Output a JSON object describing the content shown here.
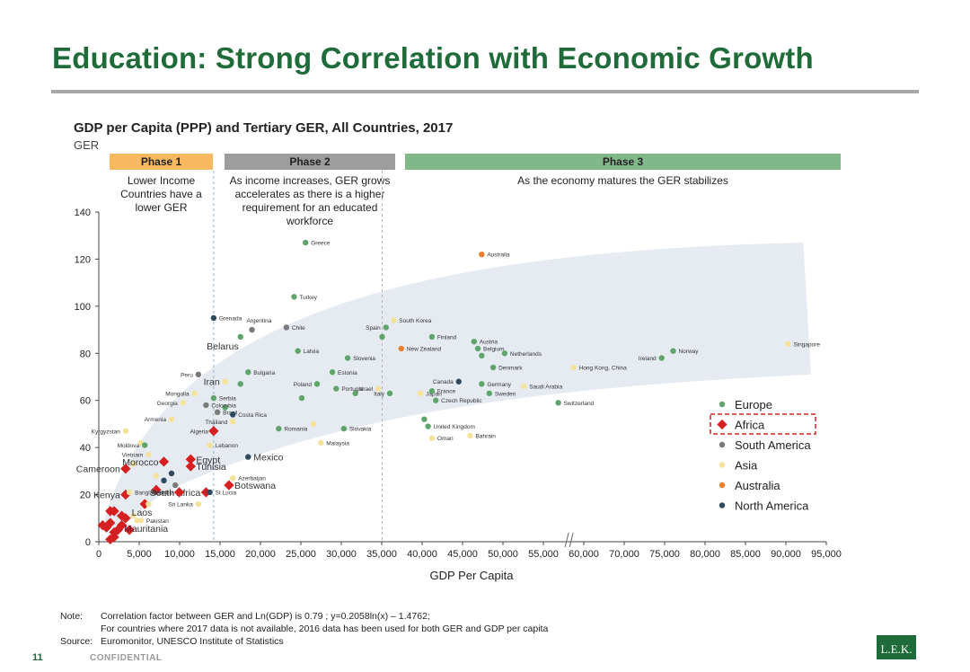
{
  "page": {
    "title": "Education: Strong Correlation with Economic Growth",
    "page_number": "11",
    "confidential": "CONFIDENTIAL",
    "logo_text": "L.E.K."
  },
  "notes": {
    "note_label": "Note:",
    "note_line1": "Correlation factor between GER and Ln(GDP) is 0.79 ; y=0.2058ln(x) – 1.4762;",
    "note_line2": "For countries where 2017 data is not available, 2016 data has been used for both GER and GDP per capita",
    "source_label": "Source:",
    "source_text": "Euromonitor, UNESCO Institute of Statistics"
  },
  "colors": {
    "Europe": "#5fa56b",
    "Africa": "#d42020",
    "South America": "#7a7a7a",
    "Asia": "#f4e29a",
    "Australia": "#ee7d2e",
    "North America": "#2e4a5e",
    "band": "#e6ebf2",
    "phase1": "#f8b860",
    "phase2": "#9d9d9d",
    "phase3": "#80b889"
  },
  "chart_data": {
    "type": "scatter",
    "title": "GDP per Capita (PPP) and Tertiary GER, All Countries, 2017",
    "ylabel": "GER",
    "xlabel": "GDP Per Capita",
    "xlim": [
      0,
      95000
    ],
    "ylim": [
      0,
      140
    ],
    "xticks": [
      "0",
      "5,000",
      "10,000",
      "15,000",
      "20,000",
      "25,000",
      "30,000",
      "35,000",
      "40,000",
      "45,000",
      "50,000",
      "55,000",
      "60,000",
      "70,000",
      "75,000",
      "80,000",
      "85,000",
      "90,000",
      "95,000"
    ],
    "yticks": [
      "0",
      "20",
      "40",
      "60",
      "80",
      "100",
      "120",
      "140"
    ],
    "axis_break_at": 61000,
    "phases": [
      {
        "name": "Phase 1",
        "desc": "Lower Income Countries have a lower GER",
        "x_end": 15000
      },
      {
        "name": "Phase 2",
        "desc": "As income increases, GER grows accelerates as there is a higher requirement for an educated workforce",
        "x_end": 37000
      },
      {
        "name": "Phase 3",
        "desc": "As the economy matures the GER stabilizes",
        "x_end": 95000
      }
    ],
    "legend": [
      "Europe",
      "Africa",
      "South America",
      "Asia",
      "Australia",
      "North America"
    ],
    "legend_highlight": "Africa",
    "legend_position": "bottom-right",
    "points": [
      {
        "label": "Greece",
        "x": 27000,
        "y": 127,
        "region": "Europe"
      },
      {
        "label": "Australia",
        "x": 50000,
        "y": 122,
        "region": "Australia"
      },
      {
        "label": "Turkey",
        "x": 25500,
        "y": 104,
        "region": "Europe"
      },
      {
        "label": "Grenada",
        "x": 15000,
        "y": 95,
        "region": "North America"
      },
      {
        "label": "Argentina",
        "x": 20000,
        "y": 90,
        "region": "South America"
      },
      {
        "label": "Chile",
        "x": 24500,
        "y": 91,
        "region": "South America"
      },
      {
        "label": "South Korea",
        "x": 38500,
        "y": 94,
        "region": "Asia"
      },
      {
        "label": "Spain",
        "x": 37500,
        "y": 91,
        "region": "Europe"
      },
      {
        "label": "Belarus",
        "x": 18500,
        "y": 87,
        "region": "Europe"
      },
      {
        "label": "Latvia",
        "x": 26000,
        "y": 81,
        "region": "Europe"
      },
      {
        "label": "Slovenia",
        "x": 32500,
        "y": 78,
        "region": "Europe"
      },
      {
        "label": "Finland",
        "x": 43500,
        "y": 87,
        "region": "Europe"
      },
      {
        "label": "Austria",
        "x": 49000,
        "y": 85,
        "region": "Europe"
      },
      {
        "label": "New Zealand",
        "x": 39500,
        "y": 82,
        "region": "Australia"
      },
      {
        "label": "Belgium",
        "x": 49500,
        "y": 82,
        "region": "Europe"
      },
      {
        "label": "Denmark",
        "x": 51500,
        "y": 74,
        "region": "Europe"
      },
      {
        "label": "Netherlands",
        "x": 53000,
        "y": 80,
        "region": "Europe"
      },
      {
        "label": "Ireland",
        "x": 73500,
        "y": 78,
        "region": "Europe"
      },
      {
        "label": "Norway",
        "x": 75000,
        "y": 81,
        "region": "Europe"
      },
      {
        "label": "Singapore",
        "x": 90000,
        "y": 84,
        "region": "Asia"
      },
      {
        "label": "Hong Kong, China",
        "x": 62000,
        "y": 74,
        "region": "Asia"
      },
      {
        "label": "Peru",
        "x": 13000,
        "y": 71,
        "region": "South America"
      },
      {
        "label": "Iran",
        "x": 16500,
        "y": 68,
        "region": "Asia"
      },
      {
        "label": "Bulgaria",
        "x": 19500,
        "y": 72,
        "region": "Europe"
      },
      {
        "label": "Estonia",
        "x": 30500,
        "y": 72,
        "region": "Europe"
      },
      {
        "label": "Poland",
        "x": 28500,
        "y": 67,
        "region": "Europe"
      },
      {
        "label": "Portugal",
        "x": 31000,
        "y": 65,
        "region": "Europe"
      },
      {
        "label": "Israel",
        "x": 36500,
        "y": 65,
        "region": "Asia"
      },
      {
        "label": "Canada",
        "x": 47000,
        "y": 68,
        "region": "North America"
      },
      {
        "label": "Germany",
        "x": 50000,
        "y": 67,
        "region": "Europe"
      },
      {
        "label": "Saudi Arabia",
        "x": 55500,
        "y": 66,
        "region": "Asia"
      },
      {
        "label": "Italy",
        "x": 38000,
        "y": 63,
        "region": "Europe"
      },
      {
        "label": "Japan",
        "x": 42000,
        "y": 63,
        "region": "Asia"
      },
      {
        "label": "France",
        "x": 43500,
        "y": 64,
        "region": "Europe"
      },
      {
        "label": "Sweden",
        "x": 51000,
        "y": 63,
        "region": "Europe"
      },
      {
        "label": "Mongolia",
        "x": 12500,
        "y": 63,
        "region": "Asia"
      },
      {
        "label": "Serbia",
        "x": 15000,
        "y": 61,
        "region": "Europe"
      },
      {
        "label": "Georgia",
        "x": 11000,
        "y": 59,
        "region": "Asia"
      },
      {
        "label": "Colombia",
        "x": 14000,
        "y": 58,
        "region": "South America"
      },
      {
        "label": "Czech Republic",
        "x": 44000,
        "y": 60,
        "region": "Europe"
      },
      {
        "label": "Switzerland",
        "x": 60000,
        "y": 59,
        "region": "Europe"
      },
      {
        "label": "Brazil",
        "x": 15500,
        "y": 55,
        "region": "South America"
      },
      {
        "label": "Costa Rica",
        "x": 17500,
        "y": 54,
        "region": "North America"
      },
      {
        "label": "Armenia",
        "x": 9500,
        "y": 52,
        "region": "Asia"
      },
      {
        "label": "United Kingdom",
        "x": 43000,
        "y": 49,
        "region": "Europe"
      },
      {
        "label": "Algeria",
        "x": 15000,
        "y": 47,
        "region": "Africa"
      },
      {
        "label": "Thailand",
        "x": 17500,
        "y": 51,
        "region": "Asia"
      },
      {
        "label": "Romania",
        "x": 23500,
        "y": 48,
        "region": "Europe"
      },
      {
        "label": "Slovakia",
        "x": 32000,
        "y": 48,
        "region": "Europe"
      },
      {
        "label": "Oman",
        "x": 43500,
        "y": 44,
        "region": "Asia"
      },
      {
        "label": "Bahrain",
        "x": 48500,
        "y": 45,
        "region": "Asia"
      },
      {
        "label": "Kyrgyzstan",
        "x": 3500,
        "y": 47,
        "region": "Asia"
      },
      {
        "label": "Malaysia",
        "x": 29000,
        "y": 42,
        "region": "Asia"
      },
      {
        "label": "Moldova",
        "x": 6000,
        "y": 41,
        "region": "Europe"
      },
      {
        "label": "Lebanon",
        "x": 14500,
        "y": 41,
        "region": "Asia"
      },
      {
        "label": "Vietnam",
        "x": 6500,
        "y": 37,
        "region": "Asia"
      },
      {
        "label": "Morocco",
        "x": 8500,
        "y": 34,
        "region": "Africa"
      },
      {
        "label": "Egypt",
        "x": 12000,
        "y": 35,
        "region": "Africa"
      },
      {
        "label": "Mexico",
        "x": 19500,
        "y": 36,
        "region": "North America"
      },
      {
        "label": "Tunisia",
        "x": 12000,
        "y": 32,
        "region": "Africa"
      },
      {
        "label": "Cameroon",
        "x": 3500,
        "y": 31,
        "region": "Africa"
      },
      {
        "label": "Azerbaijan",
        "x": 17500,
        "y": 27,
        "region": "Asia"
      },
      {
        "label": "South Africa",
        "x": 14000,
        "y": 21,
        "region": "Africa"
      },
      {
        "label": "Botswana",
        "x": 17000,
        "y": 24,
        "region": "Africa"
      },
      {
        "label": "Kenya",
        "x": 3500,
        "y": 20,
        "region": "Africa"
      },
      {
        "label": "Bangladesh",
        "x": 4000,
        "y": 21,
        "region": "Asia"
      },
      {
        "label": "Namibia",
        "x": 10500,
        "y": 21,
        "region": "Africa"
      },
      {
        "label": "St Lucia",
        "x": 14500,
        "y": 21,
        "region": "North America"
      },
      {
        "label": "Sri Lanka",
        "x": 13000,
        "y": 16,
        "region": "Asia"
      },
      {
        "label": "Laos",
        "x": 6500,
        "y": 16,
        "region": "Asia"
      },
      {
        "label": "Pakistan",
        "x": 5500,
        "y": 9,
        "region": "Asia"
      },
      {
        "label": "Mauritania",
        "x": 4000,
        "y": 5,
        "region": "Africa"
      }
    ],
    "unlabeled_points": [
      {
        "x": 9500,
        "y": 29,
        "region": "North America"
      },
      {
        "x": 7500,
        "y": 28,
        "region": "Asia"
      },
      {
        "x": 5500,
        "y": 42,
        "region": "Asia"
      },
      {
        "x": 4500,
        "y": 33,
        "region": "Asia"
      },
      {
        "x": 8500,
        "y": 26,
        "region": "North America"
      },
      {
        "x": 10000,
        "y": 24,
        "region": "South America"
      },
      {
        "x": 7500,
        "y": 22,
        "region": "Africa"
      },
      {
        "x": 6000,
        "y": 16,
        "region": "Africa"
      },
      {
        "x": 5000,
        "y": 9,
        "region": "Asia"
      },
      {
        "x": 4500,
        "y": 11,
        "region": "Asia"
      },
      {
        "x": 1500,
        "y": 13,
        "region": "Africa"
      },
      {
        "x": 2000,
        "y": 13,
        "region": "Africa"
      },
      {
        "x": 3000,
        "y": 11,
        "region": "Africa"
      },
      {
        "x": 3500,
        "y": 10,
        "region": "Africa"
      },
      {
        "x": 500,
        "y": 7,
        "region": "Africa"
      },
      {
        "x": 1000,
        "y": 6,
        "region": "Africa"
      },
      {
        "x": 1500,
        "y": 8,
        "region": "Africa"
      },
      {
        "x": 2000,
        "y": 4,
        "region": "Africa"
      },
      {
        "x": 2500,
        "y": 5,
        "region": "Africa"
      },
      {
        "x": 2000,
        "y": 2,
        "region": "Africa"
      },
      {
        "x": 3000,
        "y": 7,
        "region": "Africa"
      },
      {
        "x": 1500,
        "y": 1,
        "region": "Africa"
      },
      {
        "x": 18500,
        "y": 67,
        "region": "Europe"
      },
      {
        "x": 16500,
        "y": 57,
        "region": "Europe"
      },
      {
        "x": 28000,
        "y": 50,
        "region": "Asia"
      },
      {
        "x": 33500,
        "y": 63,
        "region": "Europe"
      },
      {
        "x": 42500,
        "y": 52,
        "region": "Europe"
      },
      {
        "x": 50000,
        "y": 79,
        "region": "Europe"
      },
      {
        "x": 37000,
        "y": 87,
        "region": "Europe"
      },
      {
        "x": 26500,
        "y": 61,
        "region": "Europe"
      }
    ]
  }
}
